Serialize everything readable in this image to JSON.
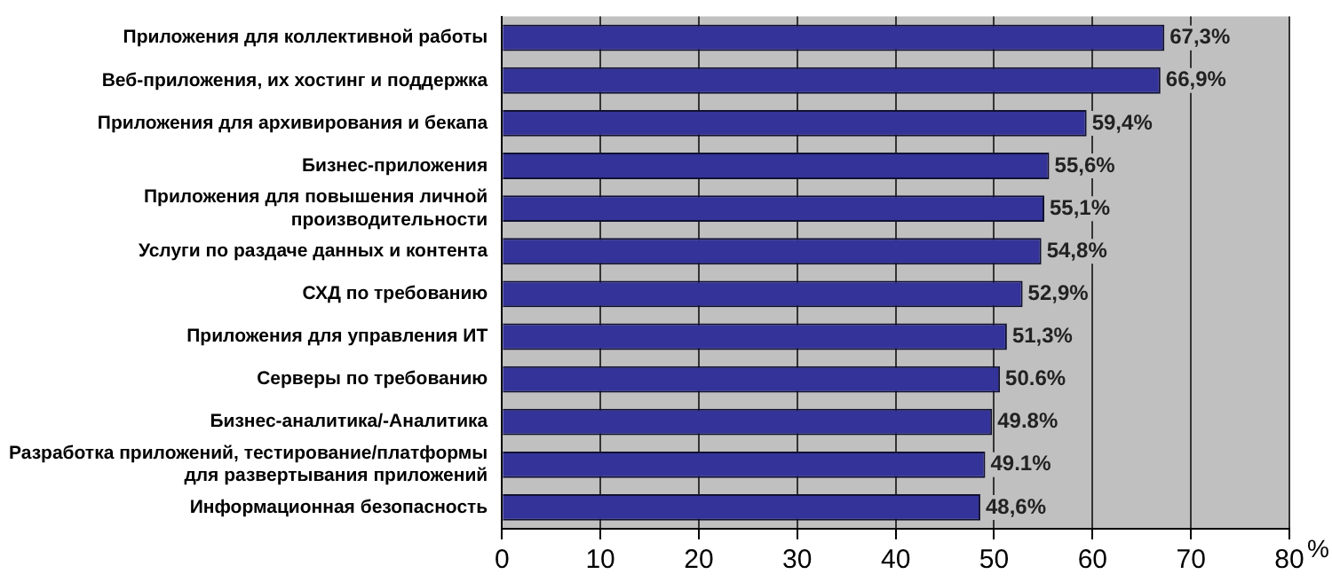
{
  "chart_data": {
    "type": "bar",
    "orientation": "horizontal",
    "categories": [
      "Приложения для коллективной работы",
      "Веб-приложения, их хостинг и поддержка",
      "Приложения для архивирования и бекапа",
      "Бизнес-приложения",
      "Приложения для повышения личной производительности",
      "Услуги по раздаче данных и контента",
      "СХД по требованию",
      "Приложения для управления ИТ",
      "Серверы по требованию",
      "Бизнес-аналитика/-Аналитика",
      "Разработка приложений, тестирование/платформы для развертывания приложений",
      "Информационная безопасность"
    ],
    "values": [
      67.3,
      66.9,
      59.4,
      55.6,
      55.1,
      54.8,
      52.9,
      51.3,
      50.6,
      49.8,
      49.1,
      48.6
    ],
    "value_labels": [
      "67,3%",
      "66,9%",
      "59,4%",
      "55,6%",
      "55,1%",
      "54,8%",
      "52,9%",
      "51,3%",
      "50.6%",
      "49.8%",
      "49.1%",
      "48,6%"
    ],
    "color": "#333399",
    "xlabel": "%",
    "xlim": [
      0,
      80
    ],
    "xticks": [
      0,
      10,
      20,
      30,
      40,
      50,
      60,
      70,
      80
    ],
    "grid": "x",
    "legend": false
  }
}
